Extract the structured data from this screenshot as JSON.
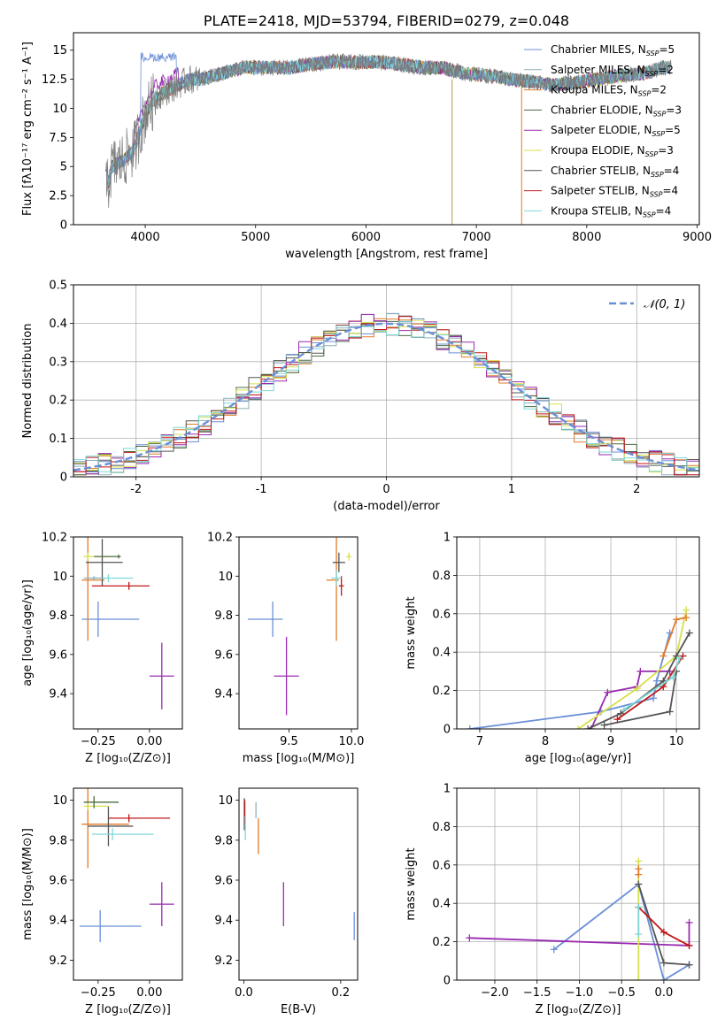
{
  "colors": {
    "chabrier_miles": "#6a8fd8",
    "salpeter_miles": "#8fb0b8",
    "kroupa_miles": "#e07b2a",
    "chabrier_elodie": "#4a6b40",
    "salpeter_elodie": "#9a2bb0",
    "kroupa_elodie": "#d6e04a",
    "chabrier_stelib": "#555555",
    "salpeter_stelib": "#c01818",
    "kroupa_stelib": "#7ed8d8",
    "gaussian": "#6a8fd8",
    "grid": "#b0b0b0"
  },
  "chart_data": [
    {
      "id": "spectrum",
      "type": "line",
      "title": "PLATE=2418, MJD=53794, FIBERID=0279, z=0.048",
      "xlabel": "wavelength [Angstrom, rest frame]",
      "ylabel": "Flux [fλ10⁻¹⁷ erg cm⁻² s⁻¹ A⁻¹]",
      "xlim": [
        3350,
        9020
      ],
      "ylim": [
        0,
        16.5
      ],
      "xticks": [
        4000,
        5000,
        6000,
        7000,
        8000,
        9000
      ],
      "yticks": [
        0.0,
        2.5,
        5.0,
        7.5,
        10.0,
        12.5,
        15.0
      ],
      "grid": false,
      "legend_position": "top-right",
      "legend": [
        {
          "label": "Chabrier MILES, N",
          "sub": "SSP",
          "tail": "=5",
          "color_key": "chabrier_miles"
        },
        {
          "label": "Salpeter MILES, N",
          "sub": "SSP",
          "tail": "=2",
          "color_key": "salpeter_miles"
        },
        {
          "label": "Kroupa MILES, N",
          "sub": "SSP",
          "tail": "=2",
          "color_key": "kroupa_miles"
        },
        {
          "label": "Chabrier ELODIE, N",
          "sub": "SSP",
          "tail": "=3",
          "color_key": "chabrier_elodie"
        },
        {
          "label": "Salpeter ELODIE, N",
          "sub": "SSP",
          "tail": "=5",
          "color_key": "salpeter_elodie"
        },
        {
          "label": "Kroupa ELODIE, N",
          "sub": "SSP",
          "tail": "=3",
          "color_key": "kroupa_elodie"
        },
        {
          "label": "Chabrier STELIB, N",
          "sub": "SSP",
          "tail": "=4",
          "color_key": "chabrier_stelib"
        },
        {
          "label": "Salpeter STELIB, N",
          "sub": "SSP",
          "tail": "=4",
          "color_key": "salpeter_stelib"
        },
        {
          "label": "Kroupa STELIB, N",
          "sub": "SSP",
          "tail": "=4",
          "color_key": "kroupa_stelib"
        }
      ],
      "data_trend": {
        "wavelength": [
          3650,
          3700,
          3800,
          3900,
          4000,
          4100,
          4200,
          4300,
          4400,
          4500,
          4700,
          4900,
          5100,
          5300,
          5500,
          5700,
          5900,
          6100,
          6300,
          6500,
          6700,
          6900,
          7100,
          7300,
          7500,
          7700,
          7900,
          8100,
          8300,
          8500,
          8700
        ],
        "flux": [
          3.0,
          5.0,
          5.5,
          6.5,
          9.5,
          11.0,
          11.5,
          12.0,
          12.5,
          12.5,
          13.0,
          13.5,
          13.5,
          13.5,
          13.8,
          14.0,
          14.0,
          14.0,
          13.8,
          13.5,
          13.5,
          13.0,
          12.8,
          12.5,
          12.3,
          12.0,
          12.2,
          12.5,
          12.8,
          13.0,
          13.5
        ]
      },
      "spikes": [
        {
          "wavelength": 6780,
          "flux_low": 0.0
        },
        {
          "wavelength": 7410,
          "flux_low": 0.0
        }
      ],
      "miles_bump": {
        "wavelength_range": [
          3960,
          4280
        ],
        "flux": 14.4
      }
    },
    {
      "id": "residuals",
      "type": "line",
      "xlabel": "(data-model)/error",
      "ylabel": "Normed distribution",
      "xlim": [
        -2.5,
        2.5
      ],
      "ylim": [
        0,
        0.5
      ],
      "xticks": [
        -2,
        -1,
        0,
        1,
        2
      ],
      "yticks": [
        0.0,
        0.1,
        0.2,
        0.3,
        0.4,
        0.5
      ],
      "grid": true,
      "legend_position": "top-right",
      "legend": [
        {
          "label": "𝒩(0, 1)",
          "color_key": "gaussian",
          "style": "dashed"
        }
      ],
      "histogram": {
        "bin_width": 0.1,
        "range": [
          -2.5,
          2.5
        ],
        "series_count": 9
      }
    },
    {
      "id": "age_vs_Z",
      "type": "scatter",
      "xlabel": "Z [log₁₀(Z/Z⊙)]",
      "ylabel": "age  [log₁₀(age/yr)]",
      "xlim": [
        -0.37,
        0.16
      ],
      "ylim": [
        9.22,
        10.2
      ],
      "xticks": [
        -0.25,
        0.0
      ],
      "xticklabels": [
        "−0.25",
        "0.00"
      ],
      "yticks": [
        9.4,
        9.6,
        9.8,
        10.0,
        10.2
      ],
      "grid": false,
      "points": [
        {
          "color_key": "chabrier_miles",
          "x": -0.25,
          "xerr": [
            0.08,
            0.2
          ],
          "y": 9.78,
          "yerr": 0.09
        },
        {
          "color_key": "salpeter_elodie",
          "x": 0.06,
          "xerr": [
            0.06,
            0.06
          ],
          "y": 9.49,
          "yerr": 0.17
        },
        {
          "color_key": "kroupa_miles",
          "x": -0.3,
          "xerr": [
            0.03,
            0.08
          ],
          "y": 9.98,
          "yerr": 0.31
        },
        {
          "color_key": "chabrier_stelib",
          "x": -0.23,
          "xerr": [
            0.08,
            0.1
          ],
          "y": 10.07,
          "yerr": 0.12
        },
        {
          "color_key": "salpeter_stelib",
          "x": -0.1,
          "xerr": [
            0.18,
            0.1
          ],
          "y": 9.95,
          "yerr": 0.02
        },
        {
          "color_key": "kroupa_elodie",
          "x": -0.3,
          "xerr": [
            0.02,
            0.1
          ],
          "y": 10.1,
          "yerr": 0.02
        },
        {
          "color_key": "kroupa_stelib",
          "x": -0.2,
          "xerr": [
            0.1,
            0.12
          ],
          "y": 9.99,
          "yerr": 0.02
        },
        {
          "color_key": "chabrier_elodie",
          "x": -0.15,
          "xerr": [
            0.12,
            0.01
          ],
          "y": 10.1,
          "yerr": 0.01
        },
        {
          "color_key": "salpeter_miles",
          "x": -0.27,
          "xerr": [
            0.05,
            0.05
          ],
          "y": 9.99,
          "yerr": 0.01
        }
      ]
    },
    {
      "id": "age_vs_mass",
      "type": "scatter",
      "xlabel": "mass [log₁₀(M/M⊙)]",
      "xlim": [
        9.1,
        10.05
      ],
      "ylim": [
        9.22,
        10.2
      ],
      "xticks": [
        9.5,
        10.0
      ],
      "xticklabels": [
        "9.5",
        "10.0"
      ],
      "yticks": [
        9.4,
        9.6,
        9.8,
        10.0,
        10.2
      ],
      "grid": false,
      "points": [
        {
          "color_key": "chabrier_miles",
          "x": 9.37,
          "xerr": [
            0.2,
            0.08
          ],
          "y": 9.78,
          "yerr": 0.09
        },
        {
          "color_key": "salpeter_elodie",
          "x": 9.48,
          "xerr": [
            0.1,
            0.1
          ],
          "y": 9.49,
          "yerr": 0.2
        },
        {
          "color_key": "kroupa_miles",
          "x": 9.88,
          "xerr": [
            0.08,
            0.02
          ],
          "y": 9.98,
          "yerr": 0.31
        },
        {
          "color_key": "chabrier_stelib",
          "x": 9.9,
          "xerr": [
            0.05,
            0.05
          ],
          "y": 10.07,
          "yerr": 0.05
        },
        {
          "color_key": "salpeter_stelib",
          "x": 9.92,
          "xerr": [
            0.02,
            0.02
          ],
          "y": 9.95,
          "yerr": 0.05
        },
        {
          "color_key": "kroupa_elodie",
          "x": 9.98,
          "xerr": [
            0.02,
            0.02
          ],
          "y": 10.1,
          "yerr": 0.02
        },
        {
          "color_key": "kroupa_stelib",
          "x": 9.88,
          "xerr": [
            0.04,
            0.04
          ],
          "y": 9.99,
          "yerr": 0.04
        }
      ]
    },
    {
      "id": "weight_vs_age",
      "type": "line",
      "xlabel": "age  [log₁₀(age/yr)]",
      "ylabel": "mass weight",
      "xlim": [
        6.65,
        10.35
      ],
      "ylim": [
        0,
        1.0
      ],
      "xticks": [
        7,
        8,
        9,
        10
      ],
      "yticks": [
        0.0,
        0.2,
        0.4,
        0.6,
        0.8,
        1.0
      ],
      "grid": true,
      "series": [
        {
          "color_key": "chabrier_miles",
          "x": [
            6.85,
            8.85,
            9.65,
            9.7,
            9.9
          ],
          "y": [
            0.0,
            0.09,
            0.16,
            0.25,
            0.5
          ]
        },
        {
          "color_key": "salpeter_elodie",
          "x": [
            8.7,
            8.95,
            9.4,
            9.45,
            9.9
          ],
          "y": [
            0.0,
            0.19,
            0.22,
            0.3,
            0.3
          ]
        },
        {
          "color_key": "kroupa_elodie",
          "x": [
            8.5,
            9.4,
            10.0,
            10.15
          ],
          "y": [
            0.0,
            0.21,
            0.38,
            0.62
          ]
        },
        {
          "color_key": "chabrier_stelib",
          "x": [
            8.65,
            9.15,
            9.8,
            10.0,
            10.2
          ],
          "y": [
            0.0,
            0.08,
            0.25,
            0.38,
            0.5
          ]
        },
        {
          "color_key": "chabrier_stelib",
          "x": [
            8.9,
            9.9,
            10.0
          ],
          "y": [
            0.02,
            0.09,
            0.3
          ]
        },
        {
          "color_key": "salpeter_stelib",
          "x": [
            9.1,
            9.8,
            10.1
          ],
          "y": [
            0.05,
            0.22,
            0.38
          ]
        },
        {
          "color_key": "kroupa_miles",
          "x": [
            9.8,
            10.0,
            10.15
          ],
          "y": [
            0.38,
            0.57,
            0.58
          ]
        },
        {
          "color_key": "kroupa_stelib",
          "x": [
            9.2,
            9.95,
            10.05
          ],
          "y": [
            0.1,
            0.27,
            0.37
          ]
        }
      ]
    },
    {
      "id": "mass_vs_Z",
      "type": "scatter",
      "xlabel": "Z [log₁₀(Z/Z⊙)]",
      "ylabel": "mass [log₁₀(M/M⊙)]",
      "xlim": [
        -0.37,
        0.16
      ],
      "ylim": [
        9.1,
        10.06
      ],
      "xticks": [
        -0.25,
        0.0
      ],
      "xticklabels": [
        "−0.25",
        "0.00"
      ],
      "yticks": [
        9.2,
        9.4,
        9.6,
        9.8,
        10.0
      ],
      "grid": false,
      "points": [
        {
          "color_key": "chabrier_miles",
          "x": -0.24,
          "xerr": [
            0.1,
            0.2
          ],
          "y": 9.37,
          "yerr": 0.08
        },
        {
          "color_key": "salpeter_elodie",
          "x": 0.06,
          "xerr": [
            0.06,
            0.06
          ],
          "y": 9.48,
          "yerr": 0.11
        },
        {
          "color_key": "kroupa_miles",
          "x": -0.3,
          "xerr": [
            0.03,
            0.2
          ],
          "y": 9.88,
          "yerr": 0.22
        },
        {
          "color_key": "chabrier_stelib",
          "x": -0.2,
          "xerr": [
            0.1,
            0.12
          ],
          "y": 9.87,
          "yerr": 0.1
        },
        {
          "color_key": "salpeter_stelib",
          "x": -0.1,
          "xerr": [
            0.1,
            0.2
          ],
          "y": 9.91,
          "yerr": 0.02
        },
        {
          "color_key": "kroupa_elodie",
          "x": -0.3,
          "xerr": [
            0.02,
            0.1
          ],
          "y": 9.97,
          "yerr": 0.02
        },
        {
          "color_key": "kroupa_stelib",
          "x": -0.18,
          "xerr": [
            0.1,
            0.2
          ],
          "y": 9.83,
          "yerr": 0.03
        },
        {
          "color_key": "chabrier_elodie",
          "x": -0.27,
          "xerr": [
            0.05,
            0.12
          ],
          "y": 9.99,
          "yerr": 0.03
        }
      ]
    },
    {
      "id": "mass_vs_EBV",
      "type": "scatter",
      "xlabel": "E(B-V)",
      "xlim": [
        -0.01,
        0.235
      ],
      "ylim": [
        9.1,
        10.06
      ],
      "xticks": [
        0.0,
        0.2
      ],
      "xticklabels": [
        "0.0",
        "0.2"
      ],
      "yticks": [
        9.2,
        9.4,
        9.6,
        9.8,
        10.0
      ],
      "grid": false,
      "points": [
        {
          "color_key": "chabrier_miles",
          "x": 0.228,
          "xerr": [
            0,
            0
          ],
          "y": 9.37,
          "yerr": 0.07
        },
        {
          "color_key": "salpeter_elodie",
          "x": 0.082,
          "xerr": [
            0,
            0
          ],
          "y": 9.48,
          "yerr": 0.11
        },
        {
          "color_key": "kroupa_miles",
          "x": 0.03,
          "xerr": [
            0,
            0
          ],
          "y": 9.82,
          "yerr": 0.09
        },
        {
          "color_key": "chabrier_stelib",
          "x": 0.001,
          "xerr": [
            0,
            0
          ],
          "y": 9.93,
          "yerr": 0.08
        },
        {
          "color_key": "salpeter_stelib",
          "x": 0.002,
          "xerr": [
            0,
            0
          ],
          "y": 9.94,
          "yerr": 0.06
        },
        {
          "color_key": "kroupa_stelib",
          "x": 0.003,
          "xerr": [
            0,
            0
          ],
          "y": 9.86,
          "yerr": 0.06
        },
        {
          "color_key": "salpeter_miles",
          "x": 0.025,
          "xerr": [
            0,
            0
          ],
          "y": 9.95,
          "yerr": 0.04
        }
      ]
    },
    {
      "id": "weight_vs_Z",
      "type": "line",
      "xlabel": "Z [log₁₀(Z/Z⊙)]",
      "ylabel": "mass weight",
      "xlim": [
        -2.45,
        0.42
      ],
      "ylim": [
        0,
        1.0
      ],
      "xticks": [
        -2.0,
        -1.5,
        -1.0,
        -0.5,
        0.0
      ],
      "xticklabels": [
        "−2.0",
        "−1.5",
        "−1.0",
        "−0.5",
        "0.0"
      ],
      "yticks": [
        0.0,
        0.2,
        0.4,
        0.6,
        0.8,
        1.0
      ],
      "grid": true,
      "series": [
        {
          "color_key": "chabrier_miles",
          "x": [
            -1.3,
            -0.3,
            0.0,
            0.3
          ],
          "y": [
            0.16,
            0.5,
            0.0,
            0.08
          ]
        },
        {
          "color_key": "salpeter_elodie",
          "x": [
            -2.3,
            0.3,
            0.3
          ],
          "y": [
            0.22,
            0.18,
            0.3
          ]
        },
        {
          "color_key": "kroupa_elodie",
          "x": [
            -0.3,
            -0.3,
            -0.3
          ],
          "y": [
            0.0,
            0.38,
            0.62
          ]
        },
        {
          "color_key": "chabrier_stelib",
          "x": [
            -0.3,
            0.0,
            0.3
          ],
          "y": [
            0.5,
            0.09,
            0.08
          ]
        },
        {
          "color_key": "salpeter_stelib",
          "x": [
            -0.3,
            0.0,
            0.3
          ],
          "y": [
            0.38,
            0.25,
            0.18
          ]
        },
        {
          "color_key": "kroupa_stelib",
          "x": [
            -0.3,
            -0.3
          ],
          "y": [
            0.24,
            0.38
          ]
        },
        {
          "color_key": "kroupa_miles",
          "x": [
            -0.3,
            -0.3
          ],
          "y": [
            0.55,
            0.58
          ]
        }
      ]
    }
  ]
}
